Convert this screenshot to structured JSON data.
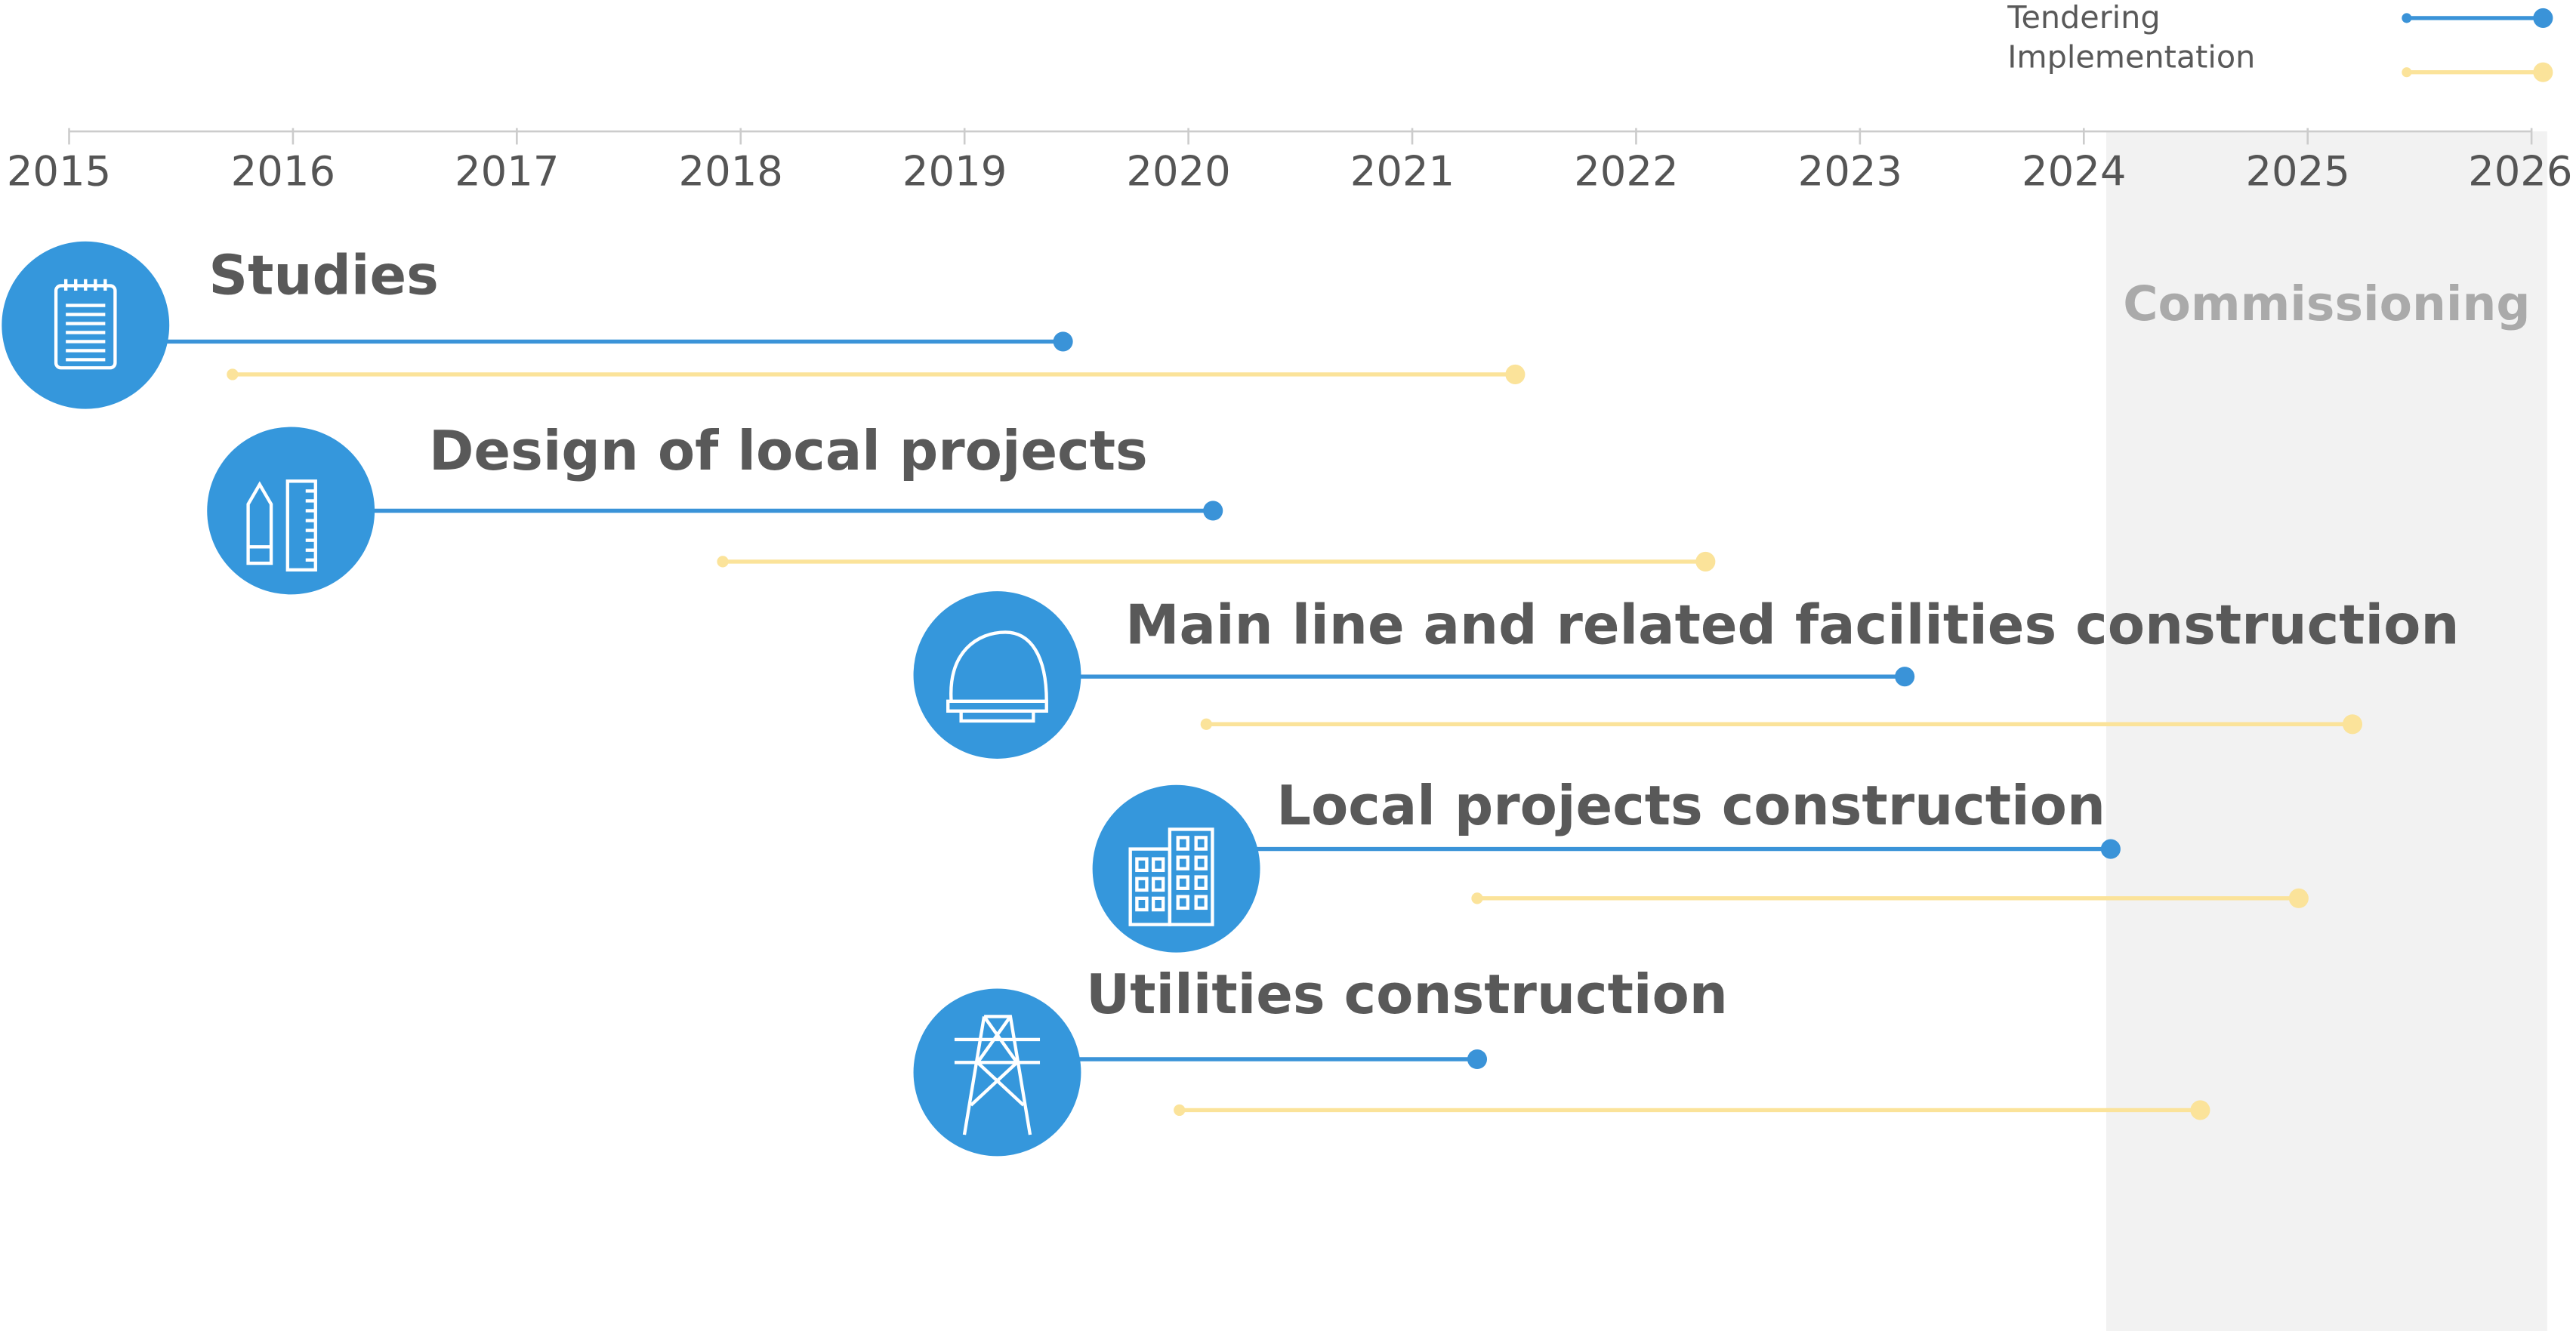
{
  "chart_data": {
    "type": "timeline",
    "categories": [
      "Studies",
      "Design of local projects",
      "Main line and related facilities construction",
      "Local projects construction",
      "Utilities construction"
    ],
    "series": [
      {
        "name": "Tendering",
        "color": "#3a93d8",
        "values": [
          [
            2015.0,
            2019.44
          ],
          [
            2015.99,
            2020.11
          ],
          [
            2019.15,
            2023.2
          ],
          [
            2019.94,
            2024.12
          ],
          [
            2019.15,
            2021.29
          ]
        ]
      },
      {
        "name": "Implementation",
        "color": "#fbe39a",
        "values": [
          [
            2015.73,
            2021.46
          ],
          [
            2017.92,
            2022.31
          ],
          [
            2020.08,
            2025.2
          ],
          [
            2021.29,
            2024.96
          ],
          [
            2019.96,
            2024.52
          ]
        ]
      }
    ],
    "commissioning": {
      "label": "Commissioning",
      "start": 2024.1,
      "end": 2026.07
    },
    "xlim": [
      2015,
      2026
    ],
    "xticks": [
      2015,
      2016,
      2017,
      2018,
      2019,
      2020,
      2021,
      2022,
      2023,
      2024,
      2025,
      2026
    ],
    "legend": "top-right"
  }
}
